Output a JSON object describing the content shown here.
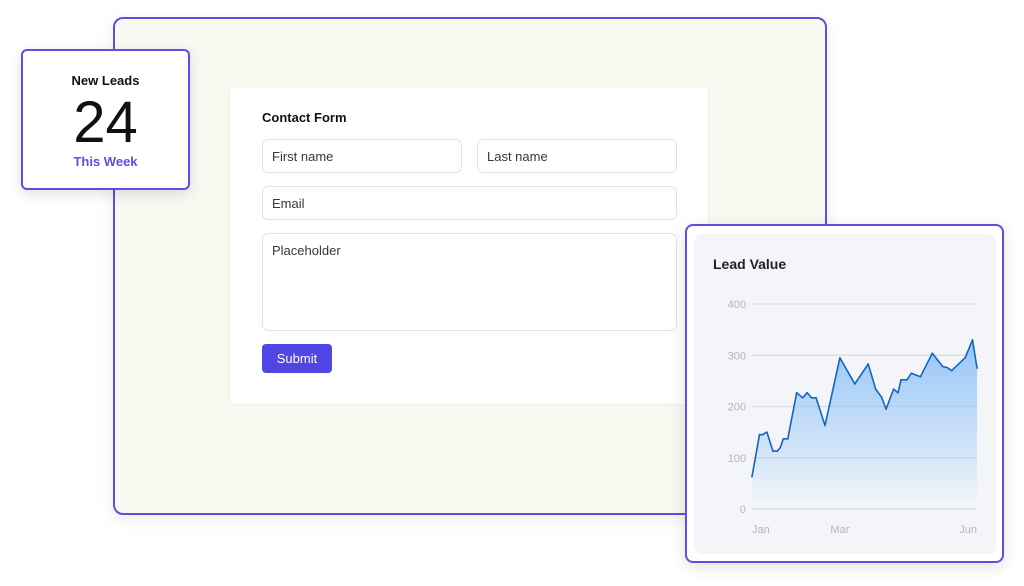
{
  "stat": {
    "label": "New Leads",
    "value": "24",
    "period": "This Week"
  },
  "form": {
    "title": "Contact Form",
    "first_name_placeholder": "First name",
    "last_name_placeholder": "Last name",
    "email_placeholder": "Email",
    "message_placeholder": "Placeholder",
    "submit_label": "Submit"
  },
  "colors": {
    "accent": "#5b4fe6",
    "button": "#4f46e5",
    "line": "#1565c0",
    "fill": "#90c2f9"
  },
  "chart_data": {
    "type": "area",
    "title": "Lead Value",
    "ylim": [
      0,
      400
    ],
    "y_ticks": [
      "0",
      "100",
      "200",
      "300",
      "400"
    ],
    "x_ticks": [
      {
        "label": "Jan",
        "date": "2023-01-01"
      },
      {
        "label": "Mar",
        "date": "2023-03-01"
      },
      {
        "label": "Jun",
        "date": "2023-06-01"
      }
    ],
    "xlim": [
      "2023-01-01",
      "2023-06-01"
    ],
    "grid": true,
    "x": [
      "2023-01-01",
      "2023-01-06",
      "2023-01-08",
      "2023-01-11",
      "2023-01-15",
      "2023-01-18",
      "2023-01-20",
      "2023-01-22",
      "2023-01-25",
      "2023-01-31",
      "2023-02-04",
      "2023-02-07",
      "2023-02-10",
      "2023-02-13",
      "2023-02-19",
      "2023-03-01",
      "2023-03-11",
      "2023-03-20",
      "2023-03-25",
      "2023-03-29",
      "2023-04-01",
      "2023-04-06",
      "2023-04-09",
      "2023-04-11",
      "2023-04-15",
      "2023-04-18",
      "2023-04-24",
      "2023-05-02",
      "2023-05-09",
      "2023-05-12",
      "2023-05-15",
      "2023-05-24",
      "2023-05-29",
      "2023-06-01"
    ],
    "values": [
      63,
      145,
      145,
      150,
      113,
      113,
      120,
      137,
      137,
      227,
      217,
      227,
      217,
      217,
      163,
      295,
      244,
      283,
      234,
      218,
      195,
      234,
      227,
      252,
      252,
      265,
      258,
      304,
      278,
      276,
      270,
      295,
      330,
      275
    ]
  }
}
